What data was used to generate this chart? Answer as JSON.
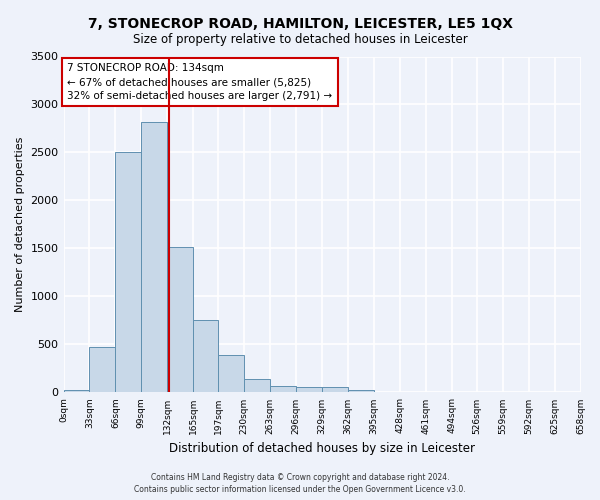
{
  "title": "7, STONECROP ROAD, HAMILTON, LEICESTER, LE5 1QX",
  "subtitle": "Size of property relative to detached houses in Leicester",
  "xlabel": "Distribution of detached houses by size in Leicester",
  "ylabel": "Number of detached properties",
  "bar_values": [
    30,
    470,
    2500,
    2820,
    1520,
    750,
    390,
    140,
    70,
    55,
    55,
    30,
    0,
    0,
    0,
    0,
    0,
    0,
    0,
    0
  ],
  "bin_edges": [
    0,
    33,
    66,
    99,
    132,
    165,
    197,
    230,
    263,
    296,
    329,
    362,
    395,
    428,
    461,
    494,
    526,
    559,
    592,
    625,
    658
  ],
  "x_tick_labels": [
    "0sqm",
    "33sqm",
    "66sqm",
    "99sqm",
    "132sqm",
    "165sqm",
    "197sqm",
    "230sqm",
    "263sqm",
    "296sqm",
    "329sqm",
    "362sqm",
    "395sqm",
    "428sqm",
    "461sqm",
    "494sqm",
    "526sqm",
    "559sqm",
    "592sqm",
    "625sqm",
    "658sqm"
  ],
  "bar_facecolor": "#c8d8e8",
  "bar_edgecolor": "#6090b0",
  "vline_x": 134,
  "vline_color": "#cc0000",
  "annotation_text": "7 STONECROP ROAD: 134sqm\n← 67% of detached houses are smaller (5,825)\n32% of semi-detached houses are larger (2,791) →",
  "annotation_box_facecolor": "white",
  "annotation_box_edgecolor": "#cc0000",
  "ylim": [
    0,
    3500
  ],
  "ytick_step": 500,
  "background_color": "#eef2fa",
  "axes_background": "#eef2fa",
  "grid_color": "#ffffff",
  "footer_line1": "Contains HM Land Registry data © Crown copyright and database right 2024.",
  "footer_line2": "Contains public sector information licensed under the Open Government Licence v3.0."
}
